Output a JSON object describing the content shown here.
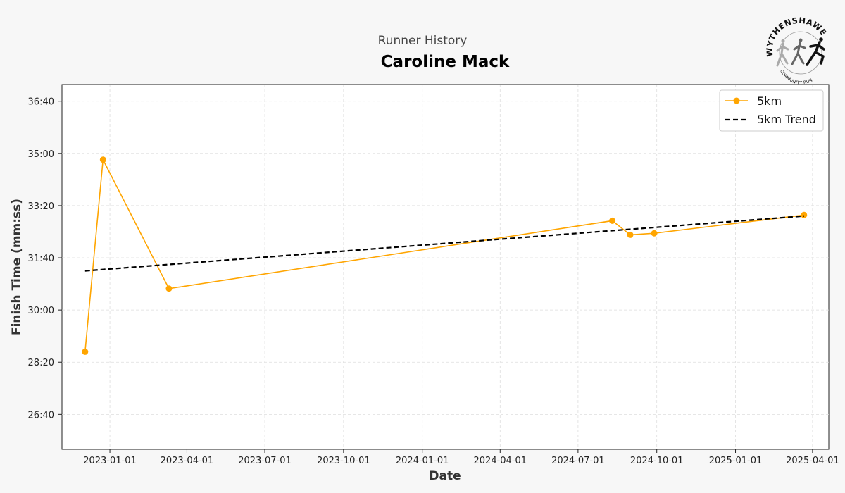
{
  "header": {
    "subtitle": "Runner History",
    "title": "Caroline Mack"
  },
  "logo": {
    "top_text": "WYTHENSHAWE",
    "bottom_text": "COMMUNITY RUN"
  },
  "chart_data": {
    "type": "line",
    "title": "Caroline Mack",
    "subtitle": "Runner History",
    "xlabel": "Date",
    "ylabel": "Finish Time (mm:ss)",
    "x_ticks": [
      "2023-01-01",
      "2023-04-01",
      "2023-07-01",
      "2023-10-01",
      "2024-01-01",
      "2024-04-01",
      "2024-07-01",
      "2024-10-01",
      "2025-01-01",
      "2025-04-01"
    ],
    "y_ticks": [
      "26:40",
      "28:20",
      "30:00",
      "31:40",
      "33:20",
      "35:00",
      "36:40"
    ],
    "y_tick_seconds": [
      1600,
      1700,
      1800,
      1900,
      2000,
      2100,
      2200
    ],
    "xlim": [
      "2022-11-06",
      "2025-04-20"
    ],
    "ylim_seconds": [
      1533,
      2232
    ],
    "grid": true,
    "legend_position": "top-right",
    "series": [
      {
        "name": "5km",
        "color": "#FFA500",
        "style": "solid",
        "marker": "circle",
        "points": [
          {
            "x": "2022-12-03",
            "y": "28:40"
          },
          {
            "x": "2022-12-24",
            "y": "34:48"
          },
          {
            "x": "2023-03-11",
            "y": "30:41"
          },
          {
            "x": "2024-08-10",
            "y": "32:51"
          },
          {
            "x": "2024-08-31",
            "y": "32:24"
          },
          {
            "x": "2024-09-28",
            "y": "32:27"
          },
          {
            "x": "2025-03-22",
            "y": "33:02"
          }
        ]
      },
      {
        "name": "5km Trend",
        "color": "#000000",
        "style": "dashed",
        "points": [
          {
            "x": "2022-12-03",
            "y": "31:15"
          },
          {
            "x": "2025-03-22",
            "y": "33:00"
          }
        ]
      }
    ]
  }
}
